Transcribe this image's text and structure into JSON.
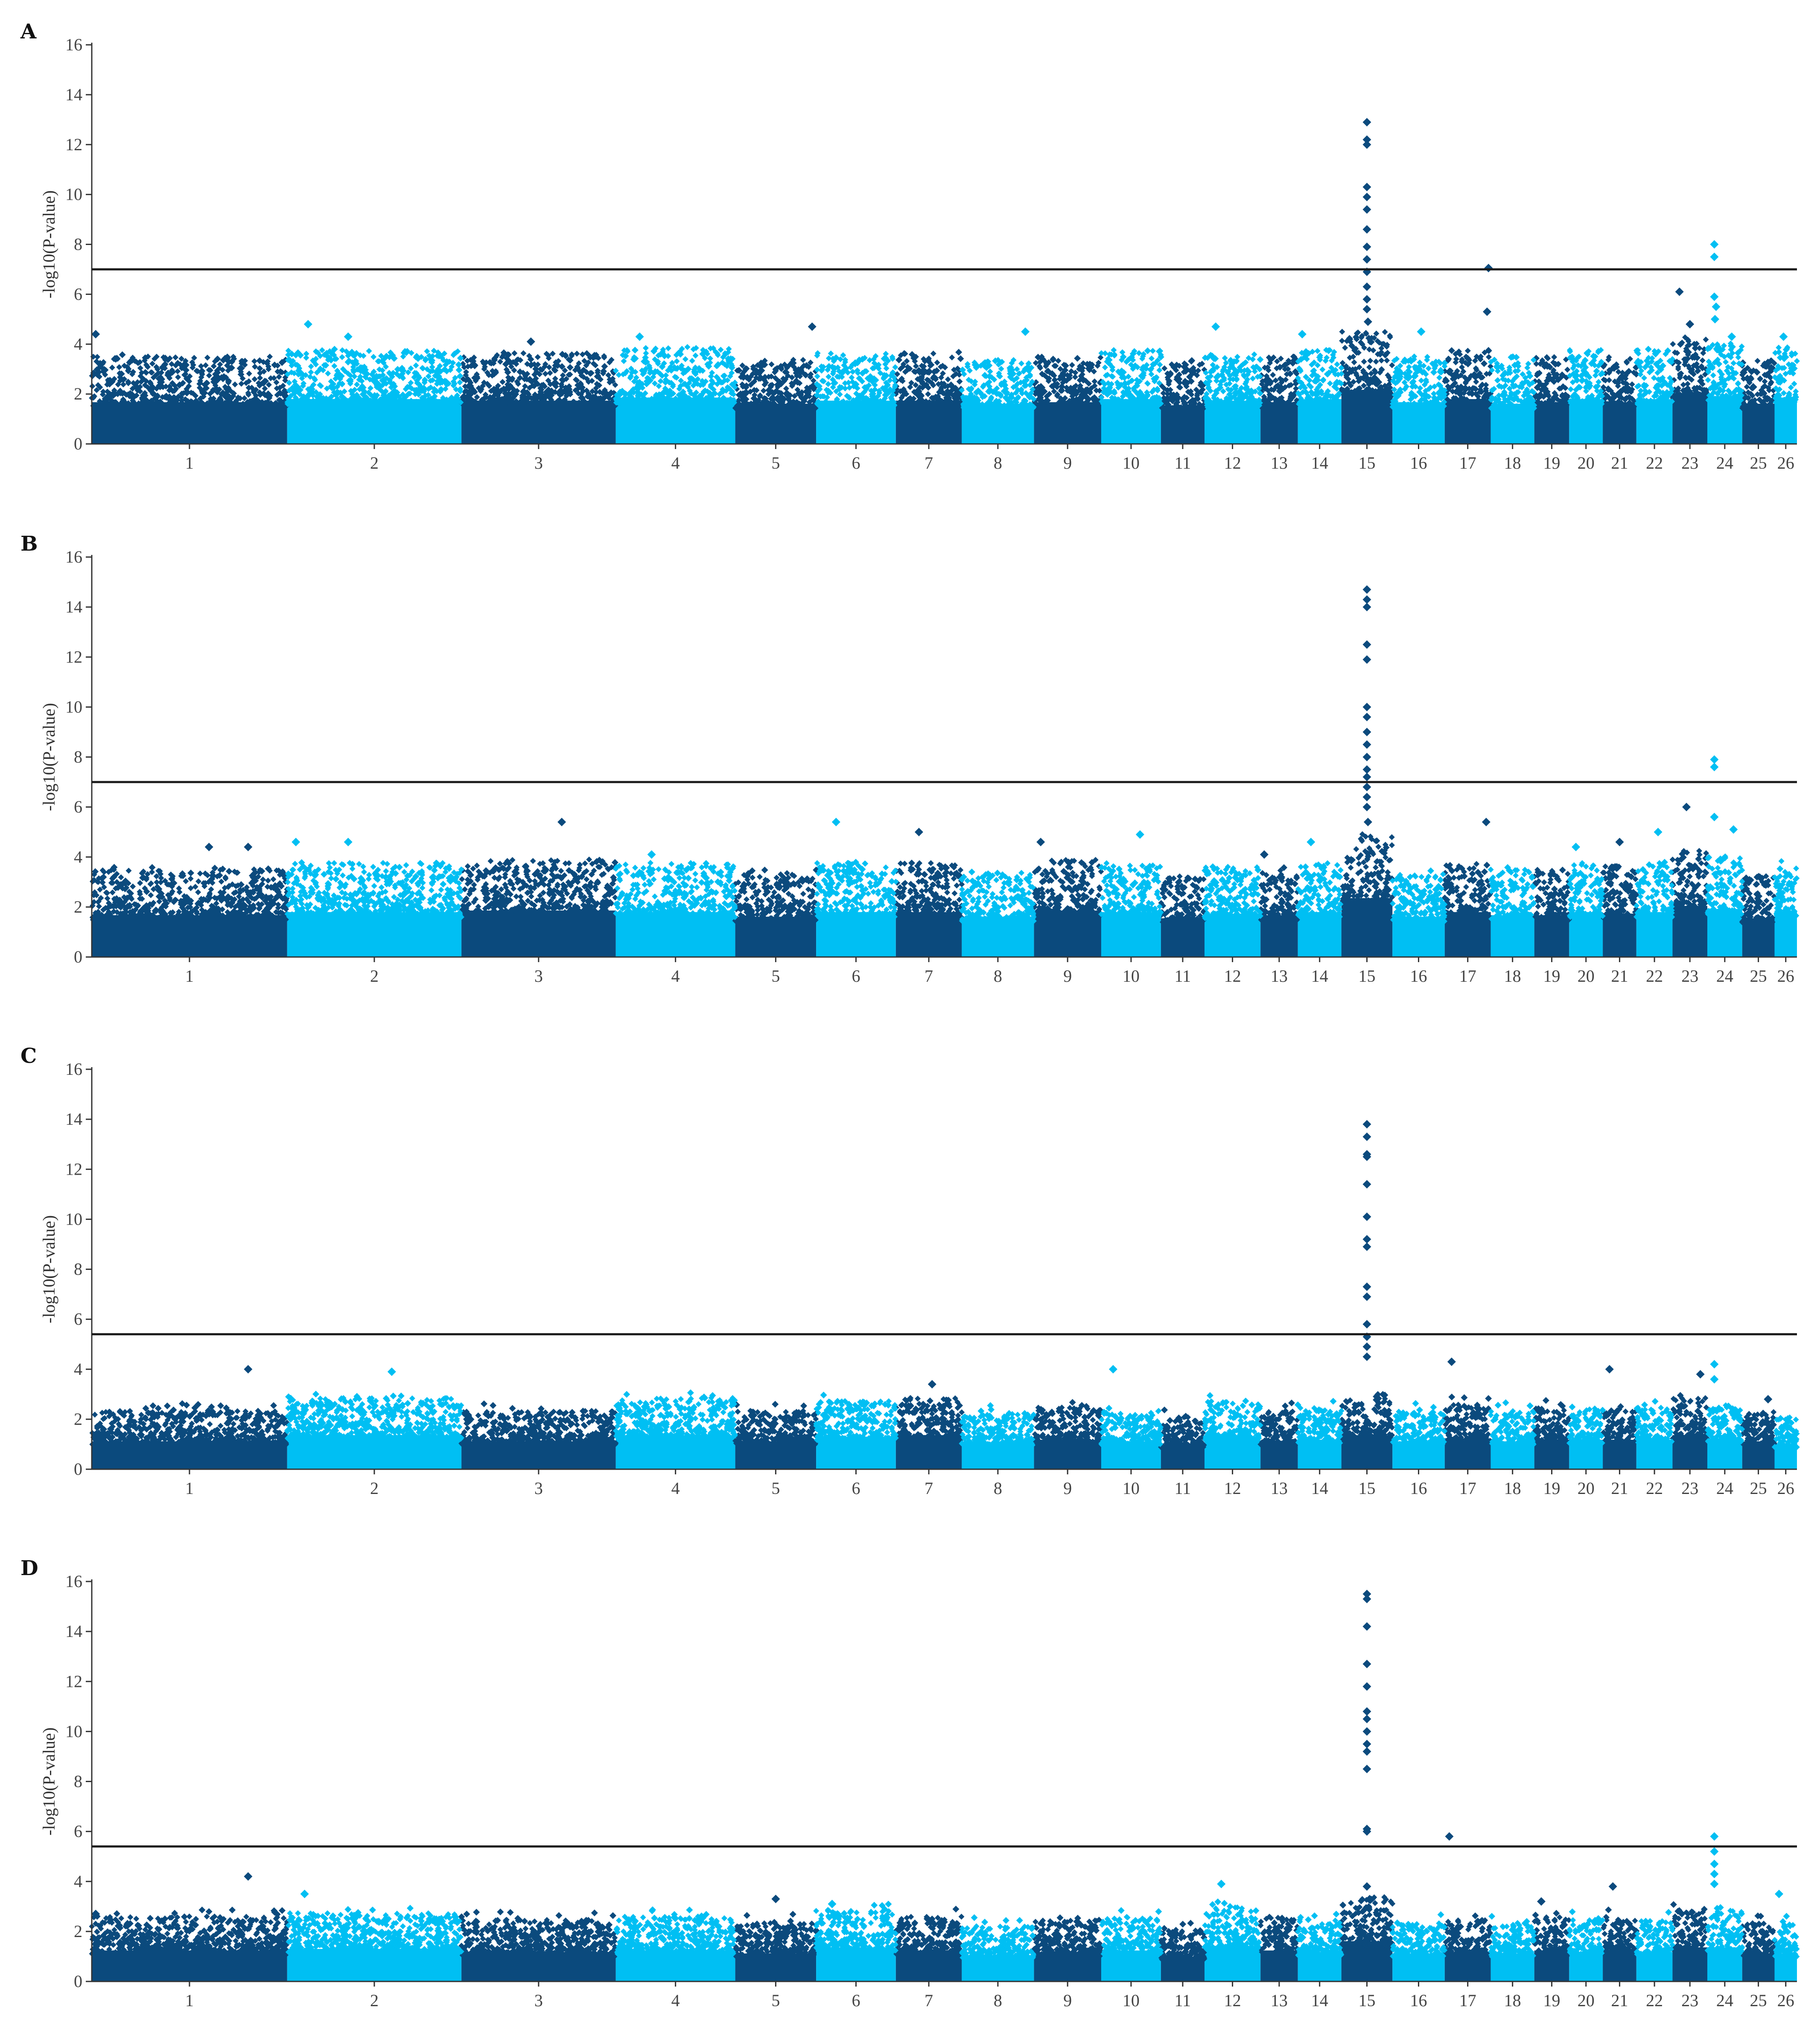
{
  "colors": {
    "dark": "#0B4A7D",
    "light": "#00BFF3",
    "threshold": "#1a1a1a",
    "axis": "#333333"
  },
  "chart_data": [
    {
      "type": "scatter",
      "subtype": "manhattan",
      "panel": "A",
      "ylabel": "-log10(P-value)",
      "yticks": [
        0,
        2,
        4,
        6,
        8,
        10,
        12,
        14,
        16
      ],
      "ylim": [
        0,
        16
      ],
      "chromosomes": [
        "1",
        "2",
        "3",
        "4",
        "5",
        "6",
        "7",
        "8",
        "9",
        "10",
        "11",
        "12",
        "13",
        "14",
        "15",
        "16",
        "17",
        "18",
        "19",
        "20",
        "21",
        "22",
        "23",
        "24",
        "25",
        "26"
      ],
      "chrom_sizes": [
        157,
        140,
        124,
        96,
        65,
        64,
        53,
        58,
        54,
        48,
        35,
        45,
        30,
        35,
        41,
        42,
        37,
        35,
        28,
        27,
        27,
        29,
        28,
        28,
        26,
        18
      ],
      "threshold": 7.0,
      "baseline": [
        2.7,
        2.9,
        2.8,
        3.0,
        2.6,
        2.8,
        2.8,
        2.6,
        2.7,
        2.9,
        2.5,
        2.8,
        2.7,
        2.9,
        3.5,
        2.7,
        2.9,
        2.6,
        2.7,
        2.9,
        2.7,
        2.9,
        3.3,
        3.1,
        2.6,
        3.0
      ],
      "top_hits": [
        {
          "chr": "1",
          "pos": 0.02,
          "y": 4.4
        },
        {
          "chr": "2",
          "pos": 0.12,
          "y": 4.8
        },
        {
          "chr": "2",
          "pos": 0.35,
          "y": 4.3
        },
        {
          "chr": "3",
          "pos": 0.45,
          "y": 4.1
        },
        {
          "chr": "4",
          "pos": 0.2,
          "y": 4.3
        },
        {
          "chr": "5",
          "pos": 0.95,
          "y": 4.7
        },
        {
          "chr": "8",
          "pos": 0.88,
          "y": 4.5
        },
        {
          "chr": "12",
          "pos": 0.2,
          "y": 4.7
        },
        {
          "chr": "14",
          "pos": 0.1,
          "y": 4.4
        },
        {
          "chr": "15",
          "pos": 0.5,
          "y": 12.9
        },
        {
          "chr": "15",
          "pos": 0.5,
          "y": 12.2
        },
        {
          "chr": "15",
          "pos": 0.5,
          "y": 12.0
        },
        {
          "chr": "15",
          "pos": 0.5,
          "y": 10.3
        },
        {
          "chr": "15",
          "pos": 0.5,
          "y": 9.9
        },
        {
          "chr": "15",
          "pos": 0.5,
          "y": 9.4
        },
        {
          "chr": "15",
          "pos": 0.5,
          "y": 8.6
        },
        {
          "chr": "15",
          "pos": 0.5,
          "y": 7.9
        },
        {
          "chr": "15",
          "pos": 0.5,
          "y": 7.4
        },
        {
          "chr": "15",
          "pos": 0.5,
          "y": 6.9
        },
        {
          "chr": "15",
          "pos": 0.5,
          "y": 6.3
        },
        {
          "chr": "15",
          "pos": 0.5,
          "y": 5.8
        },
        {
          "chr": "15",
          "pos": 0.5,
          "y": 5.4
        },
        {
          "chr": "15",
          "pos": 0.52,
          "y": 4.9
        },
        {
          "chr": "16",
          "pos": 0.55,
          "y": 4.5
        },
        {
          "chr": "17",
          "pos": 0.95,
          "y": 7.05
        },
        {
          "chr": "17",
          "pos": 0.92,
          "y": 5.3
        },
        {
          "chr": "23",
          "pos": 0.2,
          "y": 6.1
        },
        {
          "chr": "23",
          "pos": 0.5,
          "y": 4.8
        },
        {
          "chr": "24",
          "pos": 0.2,
          "y": 8.0
        },
        {
          "chr": "24",
          "pos": 0.2,
          "y": 7.5
        },
        {
          "chr": "24",
          "pos": 0.2,
          "y": 5.9
        },
        {
          "chr": "24",
          "pos": 0.25,
          "y": 5.5
        },
        {
          "chr": "24",
          "pos": 0.22,
          "y": 5.0
        },
        {
          "chr": "24",
          "pos": 0.7,
          "y": 4.3
        },
        {
          "chr": "26",
          "pos": 0.4,
          "y": 4.3
        }
      ]
    },
    {
      "type": "scatter",
      "subtype": "manhattan",
      "panel": "B",
      "ylabel": "-log10(P-value)",
      "yticks": [
        0,
        2,
        4,
        6,
        8,
        10,
        12,
        14,
        16
      ],
      "ylim": [
        0,
        16
      ],
      "chromosomes": [
        "1",
        "2",
        "3",
        "4",
        "5",
        "6",
        "7",
        "8",
        "9",
        "10",
        "11",
        "12",
        "13",
        "14",
        "15",
        "16",
        "17",
        "18",
        "19",
        "20",
        "21",
        "22",
        "23",
        "24",
        "25",
        "26"
      ],
      "chrom_sizes": [
        157,
        140,
        124,
        96,
        65,
        64,
        53,
        58,
        54,
        48,
        35,
        45,
        30,
        35,
        41,
        42,
        37,
        35,
        28,
        27,
        27,
        29,
        28,
        28,
        26,
        18
      ],
      "threshold": 7.0,
      "baseline": [
        2.7,
        2.9,
        3.0,
        2.9,
        2.6,
        2.9,
        2.9,
        2.6,
        3.0,
        2.9,
        2.5,
        2.8,
        2.7,
        2.9,
        3.8,
        2.6,
        2.9,
        2.7,
        2.7,
        2.9,
        2.8,
        2.9,
        3.3,
        3.1,
        2.5,
        3.0
      ],
      "top_hits": [
        {
          "chr": "1",
          "pos": 0.6,
          "y": 4.4
        },
        {
          "chr": "1",
          "pos": 0.8,
          "y": 4.4
        },
        {
          "chr": "2",
          "pos": 0.05,
          "y": 4.6
        },
        {
          "chr": "2",
          "pos": 0.35,
          "y": 4.6
        },
        {
          "chr": "3",
          "pos": 0.65,
          "y": 5.4
        },
        {
          "chr": "4",
          "pos": 0.3,
          "y": 4.1
        },
        {
          "chr": "6",
          "pos": 0.25,
          "y": 5.4
        },
        {
          "chr": "7",
          "pos": 0.35,
          "y": 5.0
        },
        {
          "chr": "9",
          "pos": 0.1,
          "y": 4.6
        },
        {
          "chr": "10",
          "pos": 0.65,
          "y": 4.9
        },
        {
          "chr": "13",
          "pos": 0.1,
          "y": 4.1
        },
        {
          "chr": "14",
          "pos": 0.3,
          "y": 4.6
        },
        {
          "chr": "15",
          "pos": 0.5,
          "y": 14.7
        },
        {
          "chr": "15",
          "pos": 0.5,
          "y": 14.3
        },
        {
          "chr": "15",
          "pos": 0.5,
          "y": 14.0
        },
        {
          "chr": "15",
          "pos": 0.5,
          "y": 12.5
        },
        {
          "chr": "15",
          "pos": 0.5,
          "y": 11.9
        },
        {
          "chr": "15",
          "pos": 0.5,
          "y": 10.0
        },
        {
          "chr": "15",
          "pos": 0.5,
          "y": 9.6
        },
        {
          "chr": "15",
          "pos": 0.5,
          "y": 9.0
        },
        {
          "chr": "15",
          "pos": 0.5,
          "y": 8.5
        },
        {
          "chr": "15",
          "pos": 0.5,
          "y": 8.0
        },
        {
          "chr": "15",
          "pos": 0.5,
          "y": 7.5
        },
        {
          "chr": "15",
          "pos": 0.5,
          "y": 7.2
        },
        {
          "chr": "15",
          "pos": 0.5,
          "y": 6.8
        },
        {
          "chr": "15",
          "pos": 0.5,
          "y": 6.4
        },
        {
          "chr": "15",
          "pos": 0.5,
          "y": 6.0
        },
        {
          "chr": "15",
          "pos": 0.52,
          "y": 5.4
        },
        {
          "chr": "17",
          "pos": 0.9,
          "y": 5.4
        },
        {
          "chr": "20",
          "pos": 0.2,
          "y": 4.4
        },
        {
          "chr": "21",
          "pos": 0.5,
          "y": 4.6
        },
        {
          "chr": "22",
          "pos": 0.6,
          "y": 5.0
        },
        {
          "chr": "23",
          "pos": 0.4,
          "y": 6.0
        },
        {
          "chr": "24",
          "pos": 0.2,
          "y": 7.9
        },
        {
          "chr": "24",
          "pos": 0.2,
          "y": 7.6
        },
        {
          "chr": "24",
          "pos": 0.2,
          "y": 5.6
        },
        {
          "chr": "24",
          "pos": 0.75,
          "y": 5.1
        }
      ]
    },
    {
      "type": "scatter",
      "subtype": "manhattan",
      "panel": "C",
      "ylabel": "-log10(P-value)",
      "yticks": [
        0,
        2,
        4,
        6,
        8,
        10,
        12,
        14,
        16
      ],
      "ylim": [
        0,
        16
      ],
      "chromosomes": [
        "1",
        "2",
        "3",
        "4",
        "5",
        "6",
        "7",
        "8",
        "9",
        "10",
        "11",
        "12",
        "13",
        "14",
        "15",
        "16",
        "17",
        "18",
        "19",
        "20",
        "21",
        "22",
        "23",
        "24",
        "25",
        "26"
      ],
      "chrom_sizes": [
        157,
        140,
        124,
        96,
        65,
        64,
        53,
        58,
        54,
        48,
        35,
        45,
        30,
        35,
        41,
        42,
        37,
        35,
        28,
        27,
        27,
        29,
        28,
        28,
        26,
        18
      ],
      "threshold": 5.4,
      "baseline": [
        1.8,
        2.2,
        1.8,
        2.2,
        1.8,
        2.1,
        2.2,
        1.7,
        1.9,
        1.8,
        1.6,
        2.1,
        1.8,
        1.9,
        2.2,
        1.8,
        2.0,
        1.8,
        1.9,
        1.9,
        1.9,
        1.9,
        2.2,
        2.0,
        1.8,
        1.6
      ],
      "top_hits": [
        {
          "chr": "1",
          "pos": 0.8,
          "y": 4.0
        },
        {
          "chr": "2",
          "pos": 0.6,
          "y": 3.9
        },
        {
          "chr": "7",
          "pos": 0.55,
          "y": 3.4
        },
        {
          "chr": "10",
          "pos": 0.2,
          "y": 4.0
        },
        {
          "chr": "15",
          "pos": 0.5,
          "y": 13.8
        },
        {
          "chr": "15",
          "pos": 0.5,
          "y": 13.3
        },
        {
          "chr": "15",
          "pos": 0.5,
          "y": 12.6
        },
        {
          "chr": "15",
          "pos": 0.5,
          "y": 12.5
        },
        {
          "chr": "15",
          "pos": 0.5,
          "y": 11.4
        },
        {
          "chr": "15",
          "pos": 0.5,
          "y": 10.1
        },
        {
          "chr": "15",
          "pos": 0.5,
          "y": 9.2
        },
        {
          "chr": "15",
          "pos": 0.5,
          "y": 8.9
        },
        {
          "chr": "15",
          "pos": 0.5,
          "y": 7.3
        },
        {
          "chr": "15",
          "pos": 0.5,
          "y": 6.9
        },
        {
          "chr": "15",
          "pos": 0.5,
          "y": 5.8
        },
        {
          "chr": "15",
          "pos": 0.5,
          "y": 5.3
        },
        {
          "chr": "15",
          "pos": 0.5,
          "y": 4.9
        },
        {
          "chr": "15",
          "pos": 0.5,
          "y": 4.5
        },
        {
          "chr": "17",
          "pos": 0.15,
          "y": 4.3
        },
        {
          "chr": "21",
          "pos": 0.2,
          "y": 4.0
        },
        {
          "chr": "23",
          "pos": 0.8,
          "y": 3.8
        },
        {
          "chr": "24",
          "pos": 0.2,
          "y": 4.2
        },
        {
          "chr": "24",
          "pos": 0.2,
          "y": 3.6
        },
        {
          "chr": "25",
          "pos": 0.8,
          "y": 2.8
        }
      ]
    },
    {
      "type": "scatter",
      "subtype": "manhattan",
      "panel": "D",
      "ylabel": "-log10(P-value)",
      "yticks": [
        0,
        2,
        4,
        6,
        8,
        10,
        12,
        14,
        16
      ],
      "ylim": [
        0,
        16
      ],
      "chromosomes": [
        "1",
        "2",
        "3",
        "4",
        "5",
        "6",
        "7",
        "8",
        "9",
        "10",
        "11",
        "12",
        "13",
        "14",
        "15",
        "16",
        "17",
        "18",
        "19",
        "20",
        "21",
        "22",
        "23",
        "24",
        "25",
        "26"
      ],
      "chrom_sizes": [
        157,
        140,
        124,
        96,
        65,
        64,
        53,
        58,
        54,
        48,
        35,
        45,
        30,
        35,
        41,
        42,
        37,
        35,
        28,
        27,
        27,
        29,
        28,
        28,
        26,
        18
      ],
      "threshold": 5.4,
      "baseline": [
        2.0,
        2.1,
        1.9,
        2.0,
        1.8,
        2.2,
        2.0,
        1.7,
        1.9,
        2.0,
        1.6,
        2.3,
        2.0,
        1.9,
        2.6,
        1.8,
        1.9,
        1.8,
        2.0,
        1.9,
        2.0,
        1.9,
        2.2,
        2.2,
        1.8,
        1.8
      ],
      "top_hits": [
        {
          "chr": "1",
          "pos": 0.02,
          "y": 2.7
        },
        {
          "chr": "1",
          "pos": 0.8,
          "y": 4.2
        },
        {
          "chr": "2",
          "pos": 0.1,
          "y": 3.5
        },
        {
          "chr": "5",
          "pos": 0.5,
          "y": 3.3
        },
        {
          "chr": "6",
          "pos": 0.2,
          "y": 3.1
        },
        {
          "chr": "12",
          "pos": 0.3,
          "y": 3.9
        },
        {
          "chr": "15",
          "pos": 0.5,
          "y": 15.5
        },
        {
          "chr": "15",
          "pos": 0.5,
          "y": 15.3
        },
        {
          "chr": "15",
          "pos": 0.5,
          "y": 14.2
        },
        {
          "chr": "15",
          "pos": 0.5,
          "y": 12.7
        },
        {
          "chr": "15",
          "pos": 0.5,
          "y": 11.8
        },
        {
          "chr": "15",
          "pos": 0.5,
          "y": 10.8
        },
        {
          "chr": "15",
          "pos": 0.5,
          "y": 10.5
        },
        {
          "chr": "15",
          "pos": 0.5,
          "y": 10.0
        },
        {
          "chr": "15",
          "pos": 0.5,
          "y": 9.5
        },
        {
          "chr": "15",
          "pos": 0.5,
          "y": 9.2
        },
        {
          "chr": "15",
          "pos": 0.5,
          "y": 8.5
        },
        {
          "chr": "15",
          "pos": 0.5,
          "y": 6.1
        },
        {
          "chr": "15",
          "pos": 0.5,
          "y": 6.0
        },
        {
          "chr": "15",
          "pos": 0.5,
          "y": 3.8
        },
        {
          "chr": "17",
          "pos": 0.1,
          "y": 5.8
        },
        {
          "chr": "19",
          "pos": 0.2,
          "y": 3.2
        },
        {
          "chr": "21",
          "pos": 0.3,
          "y": 3.8
        },
        {
          "chr": "24",
          "pos": 0.2,
          "y": 5.8
        },
        {
          "chr": "24",
          "pos": 0.2,
          "y": 5.2
        },
        {
          "chr": "24",
          "pos": 0.2,
          "y": 4.7
        },
        {
          "chr": "24",
          "pos": 0.2,
          "y": 4.3
        },
        {
          "chr": "24",
          "pos": 0.2,
          "y": 3.9
        },
        {
          "chr": "26",
          "pos": 0.2,
          "y": 3.5
        }
      ]
    }
  ]
}
